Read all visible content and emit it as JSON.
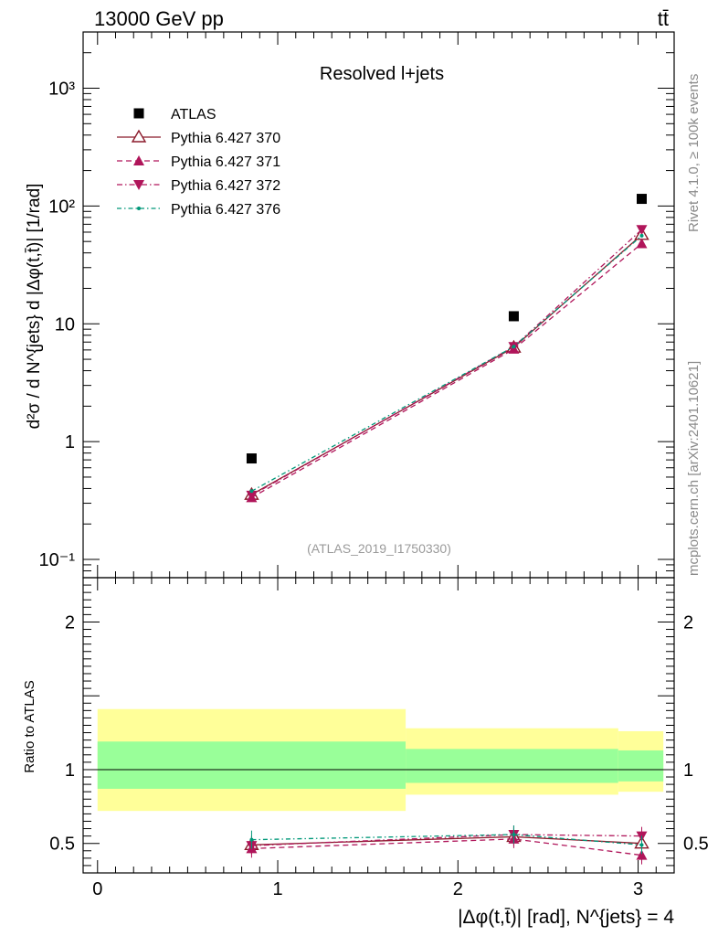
{
  "header": {
    "left": "13000 GeV pp",
    "right": "tt̄"
  },
  "side": {
    "top": "Rivet 4.1.0, ≥ 100k events",
    "bottom": "mcplots.cern.ch [arXiv:2401.10621]"
  },
  "chart_data": [
    {
      "type": "scatter",
      "panel": "main",
      "title": "Resolved l+jets",
      "ylabel": "d²σ / d N^{jets} d |Δφ(t,t̄)| [1/rad]",
      "yscale": "log",
      "ylim": [
        0.07,
        3000
      ],
      "xlim": [
        -0.08,
        3.2
      ],
      "yticks": [
        "10⁻¹",
        "1",
        "10",
        "10²",
        "10³"
      ],
      "annotation": "(ATLAS_2019_I1750330)",
      "x": [
        0.855,
        2.31,
        3.02
      ],
      "series": [
        {
          "name": "ATLAS",
          "values": [
            0.72,
            11.6,
            115
          ],
          "color": "#000000"
        },
        {
          "name": "Pythia 6.427 370",
          "values": [
            0.355,
            6.3,
            57
          ],
          "color": "#8b1a2b"
        },
        {
          "name": "Pythia 6.427 371",
          "values": [
            0.335,
            6.1,
            48
          ],
          "color": "#b0155a"
        },
        {
          "name": "Pythia 6.427 372",
          "values": [
            0.35,
            6.4,
            63
          ],
          "color": "#b0155a"
        },
        {
          "name": "Pythia 6.427 376",
          "values": [
            0.38,
            6.4,
            56
          ],
          "color": "#009879"
        }
      ]
    },
    {
      "type": "scatter",
      "panel": "ratio",
      "ylabel": "Ratio to ATLAS",
      "ylim": [
        0.3,
        2.3
      ],
      "xlim": [
        -0.08,
        3.2
      ],
      "xlabel": "|Δφ(t,t̄)| [rad], N^{jets} = 4",
      "xticks": [
        "0",
        "1",
        "2",
        "3"
      ],
      "yticks": [
        "0.5",
        "1",
        "2"
      ],
      "x": [
        0.855,
        2.31,
        3.02
      ],
      "bands": {
        "edges": [
          0,
          1.71,
          2.89,
          3.14
        ],
        "yellow_low": [
          0.72,
          0.83,
          0.85
        ],
        "yellow_high": [
          1.41,
          1.28,
          1.26
        ],
        "green_low": [
          0.87,
          0.91,
          0.92
        ],
        "green_high": [
          1.19,
          1.14,
          1.13
        ]
      },
      "series": [
        {
          "name": "Pythia 6.427 370",
          "values": [
            0.49,
            0.545,
            0.5
          ]
        },
        {
          "name": "Pythia 6.427 371",
          "values": [
            0.465,
            0.53,
            0.42
          ]
        },
        {
          "name": "Pythia 6.427 372",
          "values": [
            0.485,
            0.56,
            0.55
          ]
        },
        {
          "name": "Pythia 6.427 376",
          "values": [
            0.525,
            0.56,
            0.49
          ]
        }
      ]
    }
  ]
}
